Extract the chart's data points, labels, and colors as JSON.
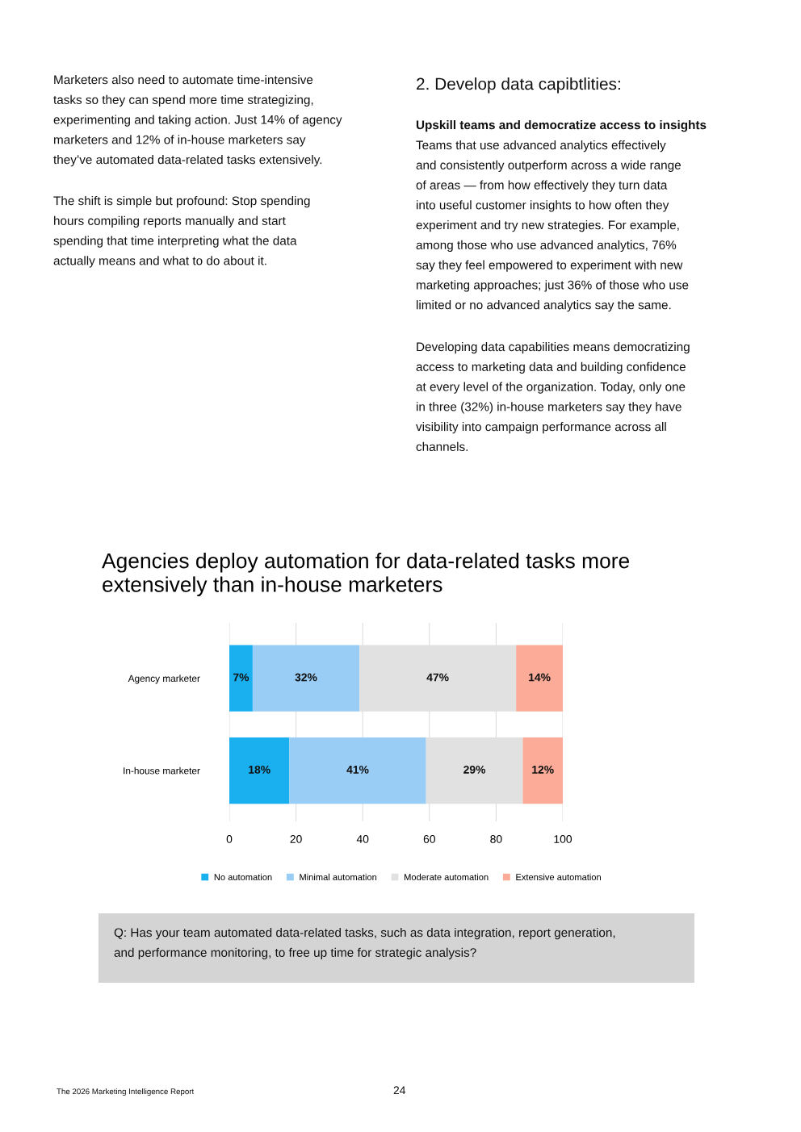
{
  "chart_data": {
    "type": "bar",
    "orientation": "horizontal",
    "stacked": true,
    "title": "Agencies deploy automation for data-related tasks more\nextensively than in-house marketers",
    "categories": [
      "Agency marketer",
      "In-house marketer"
    ],
    "series": [
      {
        "name": "No automation",
        "color": "#1ab0f0",
        "values": [
          7,
          18
        ],
        "value_labels": [
          "7%",
          "18%"
        ]
      },
      {
        "name": "Minimal automation",
        "color": "#99cdf5",
        "values": [
          32,
          41
        ],
        "value_labels": [
          "32%",
          "41%"
        ]
      },
      {
        "name": "Moderate automation",
        "color": "#e1e1e1",
        "values": [
          47,
          29
        ],
        "value_labels": [
          "47%",
          "29%"
        ]
      },
      {
        "name": "Extensive automation",
        "color": "#fbab97",
        "values": [
          14,
          12
        ],
        "value_labels": [
          "14%",
          "12%"
        ]
      }
    ],
    "xlim": [
      0,
      100
    ],
    "xticks": [
      0,
      20,
      40,
      60,
      80,
      100
    ],
    "grid": "x",
    "legend": "bottom",
    "annotations": [
      "Marketers also need to automate time-intensive\ntasks so they can spend more time strategizing,\nexperimenting and taking action. Just 14% of agency\nmarketers and 12% of in-house marketers say\nthey’ve automated data-related tasks extensively.",
      "The shift is simple but profound: Stop spending\nhours compiling reports manually and start\nspending that time interpreting what the data\nactually means and what to do about it.",
      "2. Develop data capibtlities:",
      "Upskill teams and democratize access to insights",
      "Teams that use advanced analytics effectively\nand consistently outperform across a wide range\nof areas — from how effectively they turn data\ninto useful customer insights to how often they\nexperiment and try new strategies. For example,\namong those who use advanced analytics, 76%\nsay they feel empowered to experiment with new\nmarketing approaches; just 36% of those who use\nlimited or no advanced analytics say the same.",
      "Developing data capabilities means democratizing\naccess to marketing data and building confidence\nat every level of the organization. Today, only one\nin three (32%) in-house marketers say they have\nvisibility into campaign performance across all\nchannels.",
      "Q: Has your team automated data-related tasks, such as data integration, report generation,\nand performance monitoring, to free up time for strategic analysis?",
      "The 2026 Marketing Intelligence Report",
      "24"
    ]
  }
}
